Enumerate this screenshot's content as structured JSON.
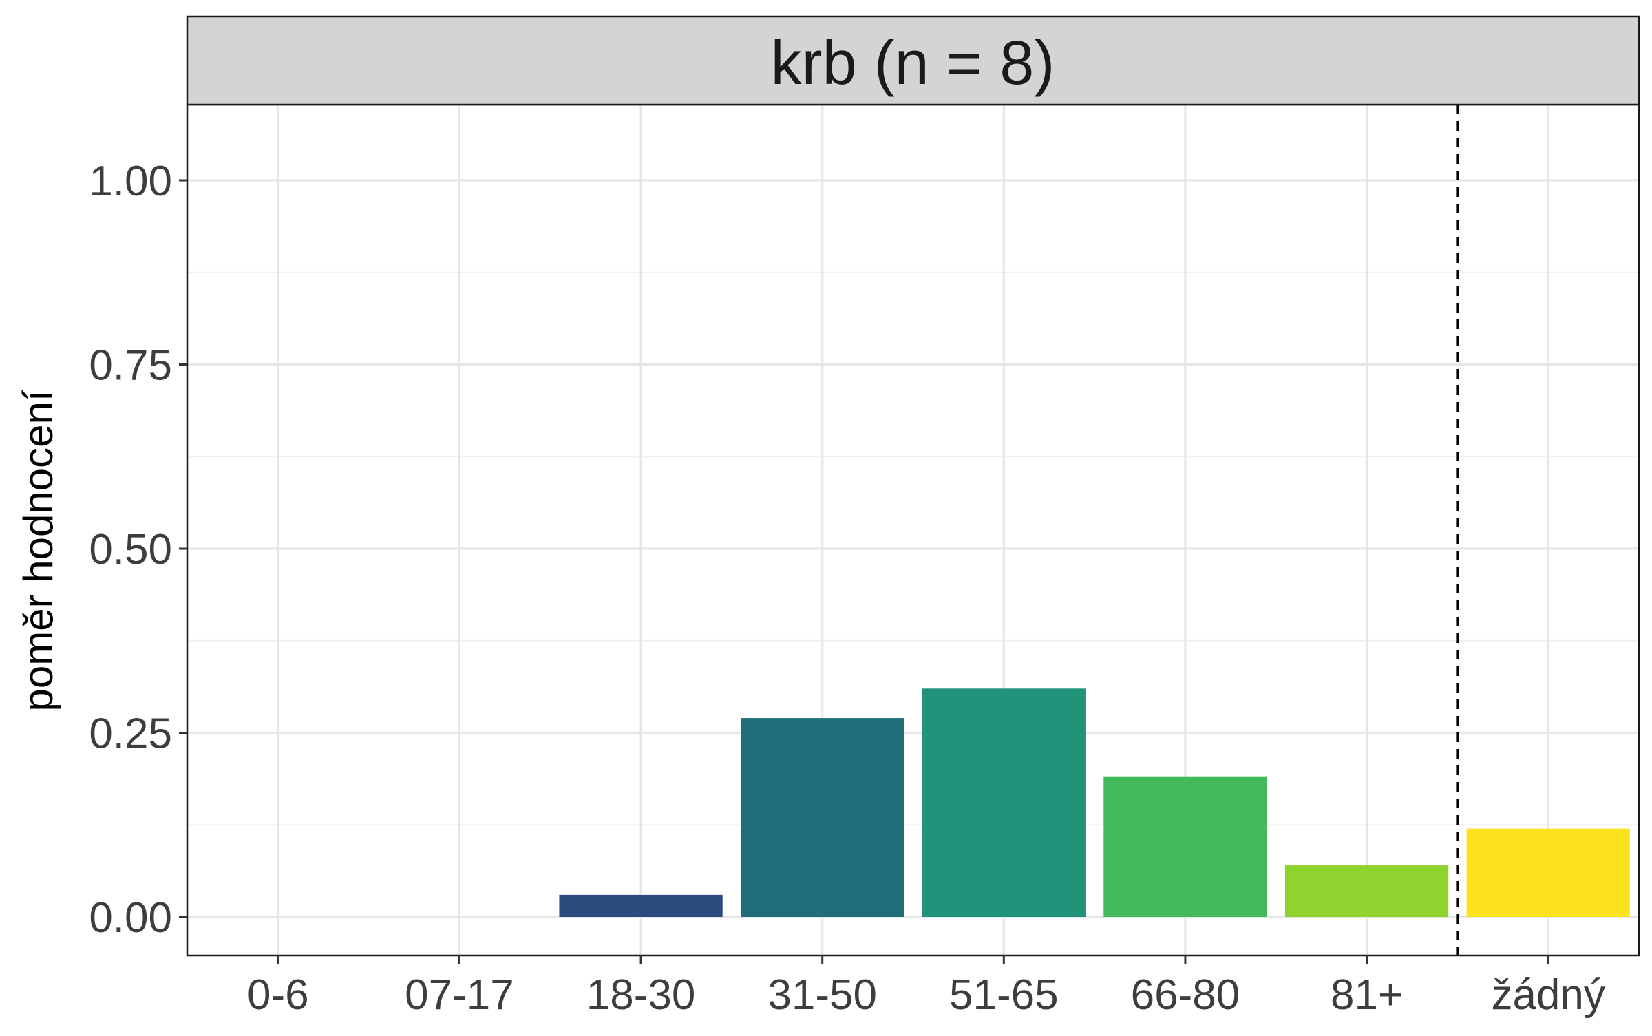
{
  "chart_data": {
    "type": "bar",
    "facet_title": "krb (n = 8)",
    "ylabel": "poměr hodnocení",
    "xlabel": "",
    "categories": [
      "0-6",
      "07-17",
      "18-30",
      "31-50",
      "51-65",
      "66-80",
      "81+",
      "žádný"
    ],
    "values": [
      0.0,
      0.0,
      0.03,
      0.27,
      0.31,
      0.19,
      0.07,
      0.12
    ],
    "colors": [
      "#440154",
      "#46337E",
      "#2B4A7E",
      "#216E7B",
      "#21937A",
      "#42B95A",
      "#8FD42E",
      "#FDE21F"
    ],
    "ylim": [
      -0.05,
      1.1
    ],
    "yticks": [
      0,
      0.25,
      0.5,
      0.75,
      1.0
    ],
    "ytick_labels": [
      "0.00",
      "0.25",
      "0.50",
      "0.75",
      "1.00"
    ],
    "reference_line": {
      "style": "dashed",
      "between": [
        "81+",
        "žádný"
      ]
    },
    "grid": true,
    "legend": "none"
  }
}
